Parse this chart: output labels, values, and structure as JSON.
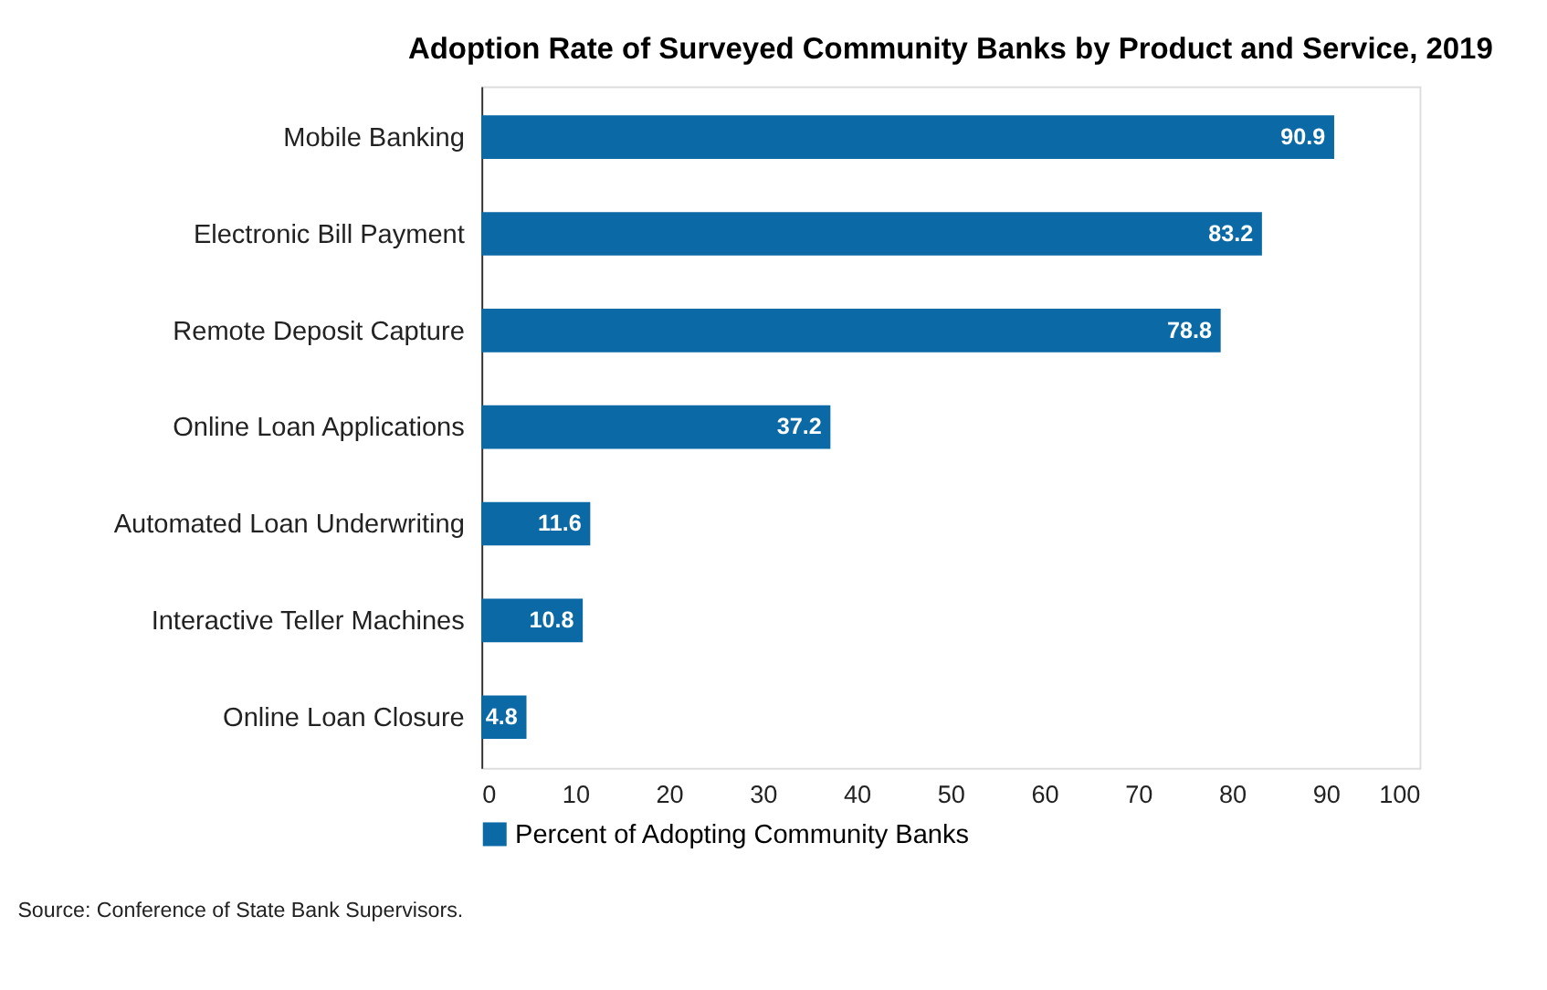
{
  "chart_data": {
    "type": "bar",
    "orientation": "horizontal",
    "title": "Adoption Rate of Surveyed Community Banks by Product and Service, 2019",
    "categories": [
      "Mobile Banking",
      "Electronic Bill Payment",
      "Remote Deposit Capture",
      "Online Loan Applications",
      "Automated Loan Underwriting",
      "Interactive Teller Machines",
      "Online Loan Closure"
    ],
    "series": [
      {
        "name": "Percent of Adopting Community Banks",
        "color": "#0b6aa6",
        "values": [
          90.9,
          83.2,
          78.8,
          37.2,
          11.6,
          10.8,
          4.8
        ]
      }
    ],
    "xlim": [
      0,
      100
    ],
    "xticks": [
      0,
      10,
      20,
      30,
      40,
      50,
      60,
      70,
      80,
      90,
      100
    ],
    "data_labels": true,
    "legend": "bottom",
    "grid": false,
    "annotations": [
      "Source: Conference of State Bank Supervisors."
    ]
  }
}
